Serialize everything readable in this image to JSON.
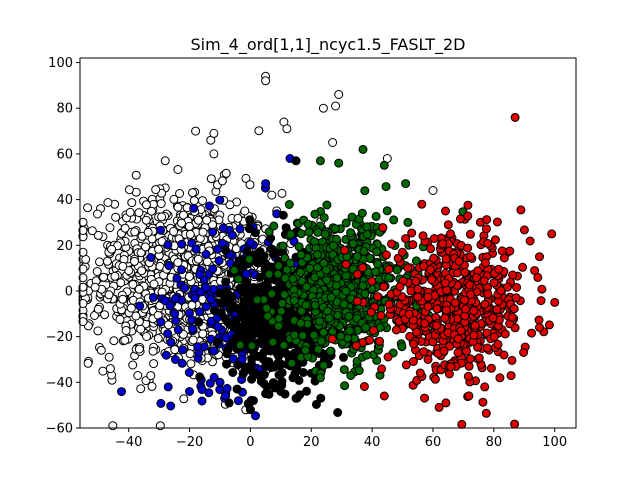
{
  "chart_data": {
    "type": "scatter",
    "title": "Sim_4_ord[1,1]_ncyc1.5_FASLT_2D",
    "xlabel": "",
    "ylabel": "",
    "xlim": [
      -56,
      107
    ],
    "ylim": [
      -60,
      102
    ],
    "x_ticks": [
      -40,
      -20,
      0,
      20,
      40,
      60,
      80,
      100
    ],
    "y_ticks": [
      -60,
      -40,
      -20,
      0,
      20,
      40,
      60,
      80,
      100
    ],
    "grid": false,
    "legend": "none",
    "series": [
      {
        "color": "#ffffff",
        "count": 1100,
        "center": [
          -22,
          5
        ],
        "spread": [
          15,
          19
        ],
        "outliers": [
          [
            5,
            94
          ],
          [
            5,
            92
          ],
          [
            29,
            86
          ],
          [
            24,
            80
          ],
          [
            28,
            81
          ],
          [
            -18,
            70
          ],
          [
            -13,
            66
          ],
          [
            -12,
            69
          ],
          [
            11,
            74
          ],
          [
            12,
            71
          ],
          [
            27,
            65
          ],
          [
            -28,
            57
          ],
          [
            -12,
            60
          ],
          [
            45,
            58
          ],
          [
            60,
            44
          ],
          [
            -49,
            -26
          ],
          [
            -46,
            -34
          ],
          [
            -37,
            -37
          ],
          [
            -50,
            -8
          ],
          [
            -47,
            13
          ]
        ]
      },
      {
        "color": "#0000cc",
        "count": 220,
        "center": [
          -7,
          -4
        ],
        "spread": [
          11,
          19
        ],
        "outliers": [
          [
            13,
            58
          ],
          [
            -20,
            -44
          ],
          [
            -27,
            -42
          ],
          [
            -10,
            -40
          ],
          [
            5,
            47
          ]
        ]
      },
      {
        "color": "#000000",
        "count": 650,
        "center": [
          10,
          -10
        ],
        "spread": [
          9,
          15
        ],
        "outliers": [
          [
            0,
            -52
          ],
          [
            -7,
            -49
          ],
          [
            1,
            -48
          ],
          [
            5,
            -45
          ],
          [
            10,
            -44
          ],
          [
            15,
            -47
          ],
          [
            14,
            -38
          ],
          [
            15,
            57
          ],
          [
            20,
            -36
          ]
        ]
      },
      {
        "color": "#006600",
        "count": 700,
        "center": [
          30,
          2
        ],
        "spread": [
          11,
          15
        ],
        "outliers": [
          [
            23,
            57
          ],
          [
            29,
            56
          ],
          [
            37,
            62
          ],
          [
            44,
            55
          ],
          [
            51,
            47
          ],
          [
            23,
            -38
          ],
          [
            33,
            -37
          ]
        ]
      },
      {
        "color": "#dd0000",
        "count": 600,
        "center": [
          67,
          -7
        ],
        "spread": [
          12,
          15
        ],
        "outliers": [
          [
            87,
            76
          ],
          [
            100,
            -5
          ],
          [
            95,
            15
          ],
          [
            99,
            25
          ],
          [
            62,
            -51
          ],
          [
            44,
            -46
          ],
          [
            77,
            -42
          ],
          [
            82,
            -38
          ],
          [
            95,
            -16
          ]
        ]
      }
    ]
  }
}
